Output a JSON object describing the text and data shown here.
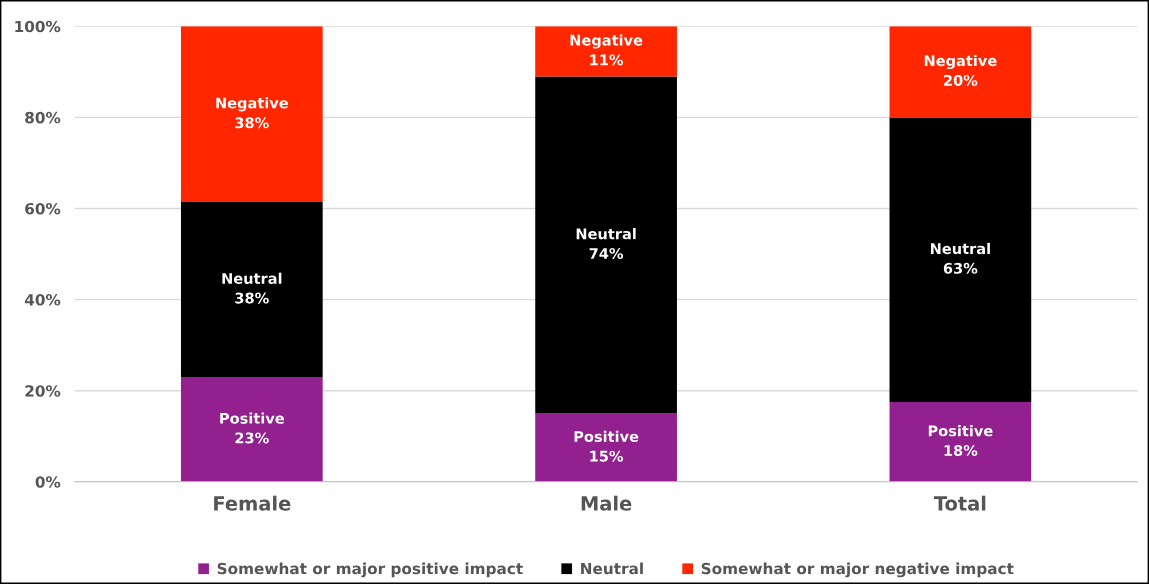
{
  "chart_data": {
    "type": "bar",
    "stacked": true,
    "categories": [
      "Female",
      "Male",
      "Total"
    ],
    "series": [
      {
        "name": "Somewhat or major positive impact",
        "color": "#92208f",
        "values": [
          23,
          15,
          17.5
        ],
        "value_labels": [
          "Positive\n23%",
          "Positive\n15%",
          "Positive\n18%"
        ]
      },
      {
        "name": "Neutral",
        "color": "#000000",
        "values": [
          38.4,
          74,
          62.5
        ],
        "value_labels": [
          "Neutral\n38%",
          "Neutral\n74%",
          "Neutral\n63%"
        ]
      },
      {
        "name": "Somewhat or major negative impact",
        "color": "#ff2600",
        "values": [
          38.6,
          11,
          20
        ],
        "value_labels": [
          "Negative\n38%",
          "Negative\n11%",
          "Negative\n20%"
        ]
      }
    ],
    "ylim": [
      0,
      100
    ],
    "yticks": [
      {
        "value": 0,
        "label": "0%"
      },
      {
        "value": 20,
        "label": "20%"
      },
      {
        "value": 40,
        "label": "40%"
      },
      {
        "value": 60,
        "label": "60%"
      },
      {
        "value": 80,
        "label": "80%"
      },
      {
        "value": 100,
        "label": "100%"
      }
    ],
    "grid": "y",
    "legend": "bottom"
  }
}
